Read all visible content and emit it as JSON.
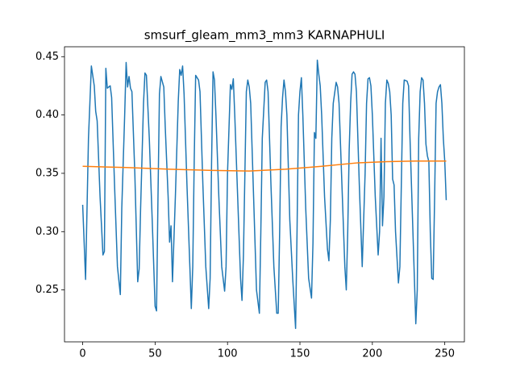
{
  "chart_data": {
    "type": "line",
    "title": "smsurf_gleam_mm3_mm3 KARNAPHULI",
    "xlim": [
      -12.55,
      263.55
    ],
    "ylim": [
      0.2055,
      0.4585
    ],
    "xticks": [
      0,
      50,
      100,
      150,
      200,
      250
    ],
    "yticks": [
      0.25,
      {
        "value": 0.3,
        "label": "0.30"
      },
      0.35,
      {
        "value": 0.4,
        "label": "0.40"
      },
      0.45
    ],
    "series": [
      {
        "color": "#1f77b4",
        "x": [
          0,
          2,
          4,
          6,
          8,
          9,
          10,
          12,
          14,
          15,
          16,
          17,
          19,
          20,
          22,
          24,
          26,
          27,
          29,
          30,
          31,
          32,
          33,
          34,
          36,
          38,
          39,
          40,
          42,
          43,
          44,
          46,
          48,
          50,
          51,
          52,
          53,
          54,
          56,
          57,
          59,
          60,
          61,
          62,
          64,
          66,
          67,
          68,
          69,
          70,
          72,
          74,
          75,
          76,
          77,
          78,
          80,
          81,
          83,
          85,
          87,
          88,
          89,
          90,
          91,
          92,
          94,
          96,
          98,
          99,
          100,
          102,
          103,
          104,
          105,
          107,
          109,
          110,
          111,
          112,
          113,
          114,
          115,
          116,
          118,
          120,
          122,
          123,
          124,
          126,
          127,
          128,
          130,
          132,
          134,
          135,
          136,
          137,
          138,
          139,
          140,
          141,
          143,
          145,
          147,
          148,
          149,
          150,
          151,
          152,
          154,
          156,
          158,
          159,
          160,
          161,
          162,
          163,
          164,
          165,
          167,
          169,
          170,
          171,
          172,
          173,
          175,
          176,
          177,
          179,
          181,
          182,
          183,
          184,
          185,
          186,
          187,
          188,
          189,
          191,
          193,
          195,
          196,
          197,
          198,
          199,
          200,
          202,
          204,
          205,
          206,
          207,
          208,
          209,
          210,
          211,
          212,
          213,
          214,
          215,
          216,
          218,
          219,
          220,
          221,
          222,
          224,
          225,
          226,
          228,
          230,
          231,
          232,
          233,
          234,
          235,
          236,
          237,
          238,
          239,
          240,
          241,
          242,
          243,
          244,
          245,
          246,
          247,
          248,
          249,
          250,
          251
        ],
        "values": [
          0.323,
          0.259,
          0.38,
          0.442,
          0.425,
          0.403,
          0.395,
          0.33,
          0.28,
          0.283,
          0.44,
          0.423,
          0.425,
          0.415,
          0.34,
          0.27,
          0.246,
          0.32,
          0.4,
          0.445,
          0.424,
          0.433,
          0.423,
          0.42,
          0.35,
          0.257,
          0.268,
          0.32,
          0.41,
          0.436,
          0.434,
          0.38,
          0.31,
          0.236,
          0.232,
          0.33,
          0.418,
          0.433,
          0.424,
          0.39,
          0.33,
          0.291,
          0.305,
          0.257,
          0.33,
          0.412,
          0.439,
          0.434,
          0.442,
          0.418,
          0.34,
          0.27,
          0.234,
          0.27,
          0.36,
          0.434,
          0.43,
          0.42,
          0.34,
          0.27,
          0.234,
          0.26,
          0.36,
          0.437,
          0.43,
          0.4,
          0.33,
          0.27,
          0.249,
          0.27,
          0.35,
          0.426,
          0.422,
          0.431,
          0.4,
          0.33,
          0.26,
          0.241,
          0.28,
          0.35,
          0.42,
          0.43,
          0.424,
          0.41,
          0.33,
          0.25,
          0.23,
          0.3,
          0.38,
          0.428,
          0.43,
          0.42,
          0.34,
          0.27,
          0.23,
          0.23,
          0.3,
          0.39,
          0.415,
          0.43,
          0.42,
          0.4,
          0.31,
          0.26,
          0.217,
          0.3,
          0.4,
          0.42,
          0.432,
          0.4,
          0.32,
          0.26,
          0.243,
          0.29,
          0.385,
          0.38,
          0.447,
          0.435,
          0.425,
          0.4,
          0.33,
          0.285,
          0.275,
          0.31,
          0.38,
          0.41,
          0.428,
          0.424,
          0.41,
          0.34,
          0.27,
          0.25,
          0.3,
          0.37,
          0.41,
          0.435,
          0.437,
          0.435,
          0.42,
          0.34,
          0.27,
          0.35,
          0.41,
          0.431,
          0.432,
          0.425,
          0.4,
          0.33,
          0.28,
          0.3,
          0.38,
          0.305,
          0.33,
          0.41,
          0.43,
          0.427,
          0.42,
          0.4,
          0.345,
          0.34,
          0.3,
          0.256,
          0.27,
          0.34,
          0.41,
          0.43,
          0.429,
          0.425,
          0.38,
          0.3,
          0.221,
          0.25,
          0.38,
          0.42,
          0.432,
          0.43,
          0.41,
          0.375,
          0.365,
          0.36,
          0.3,
          0.26,
          0.259,
          0.33,
          0.41,
          0.42,
          0.424,
          0.426,
          0.41,
          0.38,
          0.36,
          0.327
        ]
      },
      {
        "color": "#ff7f0e",
        "x": [
          0,
          30,
          60,
          90,
          115,
          140,
          165,
          190,
          210,
          230,
          251
        ],
        "values": [
          0.356,
          0.355,
          0.3535,
          0.3525,
          0.352,
          0.3535,
          0.356,
          0.359,
          0.36,
          0.3605,
          0.3605
        ]
      }
    ]
  }
}
